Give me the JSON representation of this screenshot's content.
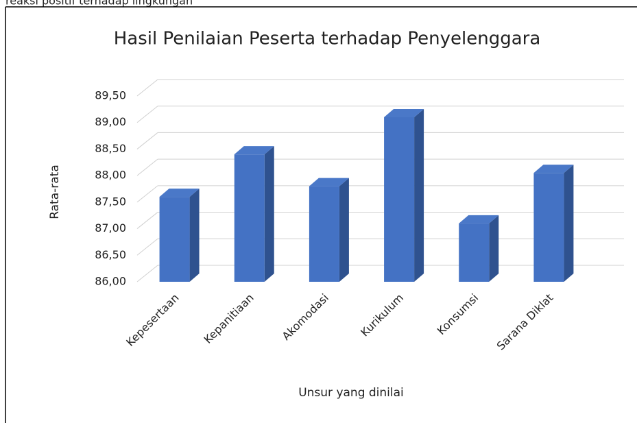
{
  "header_fragment": "reaksi    positif    terhadap    lingkungan",
  "chart_data": {
    "type": "bar3d",
    "title": "Hasil Penilaian Peserta terhadap Penyelenggara",
    "x_label": "Unsur yang dinilai",
    "y_label": "Rata-rata",
    "categories": [
      "Kepesertaan",
      "Kepanitiaan",
      "Akomodasi",
      "Kurikulum",
      "Konsumsi",
      "Sarana Diklat"
    ],
    "values": [
      87.6,
      88.4,
      87.8,
      89.1,
      87.1,
      88.05
    ],
    "color": "#4472c4",
    "ylim": [
      86,
      89.5
    ],
    "yticks": [
      {
        "value": 86,
        "label": "86,00"
      },
      {
        "value": 86.5,
        "label": "86,50"
      },
      {
        "value": 87,
        "label": "87,00"
      },
      {
        "value": 87.5,
        "label": "87,50"
      },
      {
        "value": 88,
        "label": "88,00"
      },
      {
        "value": 88.5,
        "label": "88,50"
      },
      {
        "value": 89,
        "label": "89,00"
      },
      {
        "value": 89.5,
        "label": "89,50"
      }
    ],
    "grid": true
  }
}
